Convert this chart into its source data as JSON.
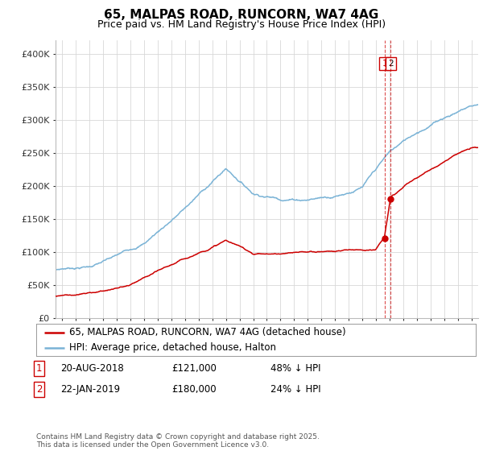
{
  "title": "65, MALPAS ROAD, RUNCORN, WA7 4AG",
  "subtitle": "Price paid vs. HM Land Registry's House Price Index (HPI)",
  "ylabel_ticks": [
    "£0",
    "£50K",
    "£100K",
    "£150K",
    "£200K",
    "£250K",
    "£300K",
    "£350K",
    "£400K"
  ],
  "ylim": [
    0,
    420000
  ],
  "xlim_start": 1994.5,
  "xlim_end": 2025.5,
  "sale1_date": 2018.63,
  "sale1_price": 121000,
  "sale1_label": "1",
  "sale2_date": 2019.08,
  "sale2_price": 180000,
  "sale2_label": "2",
  "vline_color": "#cc0000",
  "hpi_color": "#7ab3d6",
  "price_color": "#cc0000",
  "background_color": "#ffffff",
  "grid_color": "#d8d8d8",
  "legend_label_red": "65, MALPAS ROAD, RUNCORN, WA7 4AG (detached house)",
  "legend_label_blue": "HPI: Average price, detached house, Halton",
  "table_row1": [
    "1",
    "20-AUG-2018",
    "£121,000",
    "48% ↓ HPI"
  ],
  "table_row2": [
    "2",
    "22-JAN-2019",
    "£180,000",
    "24% ↓ HPI"
  ],
  "footnote": "Contains HM Land Registry data © Crown copyright and database right 2025.\nThis data is licensed under the Open Government Licence v3.0.",
  "title_fontsize": 11,
  "subtitle_fontsize": 9,
  "tick_fontsize": 8,
  "legend_fontsize": 8.5,
  "table_fontsize": 8.5
}
